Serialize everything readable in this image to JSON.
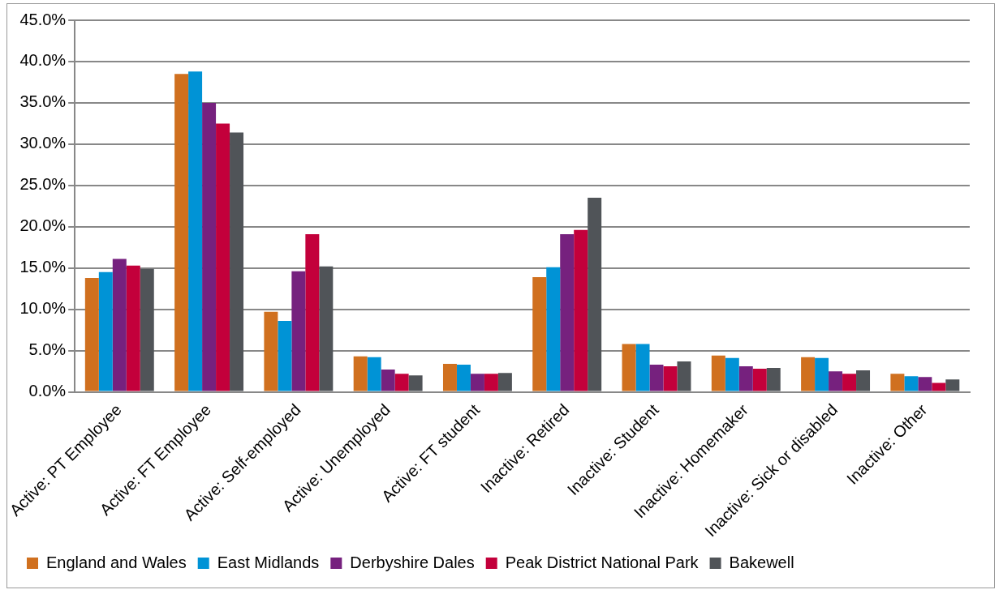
{
  "chart_data": {
    "type": "bar",
    "categories": [
      "Active: PT Employee",
      "Active: FT Employee",
      "Active: Self-employed",
      "Active: Unemployed",
      "Active: FT student",
      "Inactive: Retired",
      "Inactive: Student",
      "Inactive: Homemaker",
      "Inactive: Sick or disabled",
      "Inactive: Other"
    ],
    "series": [
      {
        "name": "England and Wales",
        "color": "#d0701f",
        "values": [
          13.8,
          38.5,
          9.7,
          4.3,
          3.4,
          13.9,
          5.8,
          4.4,
          4.2,
          2.2
        ]
      },
      {
        "name": "East Midlands",
        "color": "#0093d6",
        "values": [
          14.5,
          38.8,
          8.6,
          4.2,
          3.3,
          15.1,
          5.8,
          4.1,
          4.1,
          1.9
        ]
      },
      {
        "name": "Derbyshire Dales",
        "color": "#76217e",
        "values": [
          16.1,
          35.0,
          14.6,
          2.7,
          2.2,
          19.1,
          3.3,
          3.1,
          2.5,
          1.8
        ]
      },
      {
        "name": "Peak District National Park",
        "color": "#c3003b",
        "values": [
          15.3,
          32.5,
          19.1,
          2.2,
          2.2,
          19.6,
          3.1,
          2.8,
          2.2,
          1.1
        ]
      },
      {
        "name": "Bakewell",
        "color": "#505458",
        "values": [
          14.9,
          31.4,
          15.2,
          2.0,
          2.3,
          23.5,
          3.7,
          2.9,
          2.6,
          1.5
        ]
      }
    ],
    "ylim": [
      0,
      45
    ],
    "yticks": [
      {
        "value": 0,
        "label": "0.0%"
      },
      {
        "value": 5,
        "label": "5.0%"
      },
      {
        "value": 10,
        "label": "10.0%"
      },
      {
        "value": 15,
        "label": "15.0%"
      },
      {
        "value": 20,
        "label": "20.0%"
      },
      {
        "value": 25,
        "label": "25.0%"
      },
      {
        "value": 30,
        "label": "30.0%"
      },
      {
        "value": 35,
        "label": "35.0%"
      },
      {
        "value": 40,
        "label": "40.0%"
      },
      {
        "value": 45,
        "label": "45.0%"
      }
    ],
    "grid": "y",
    "legend": "bottom"
  }
}
